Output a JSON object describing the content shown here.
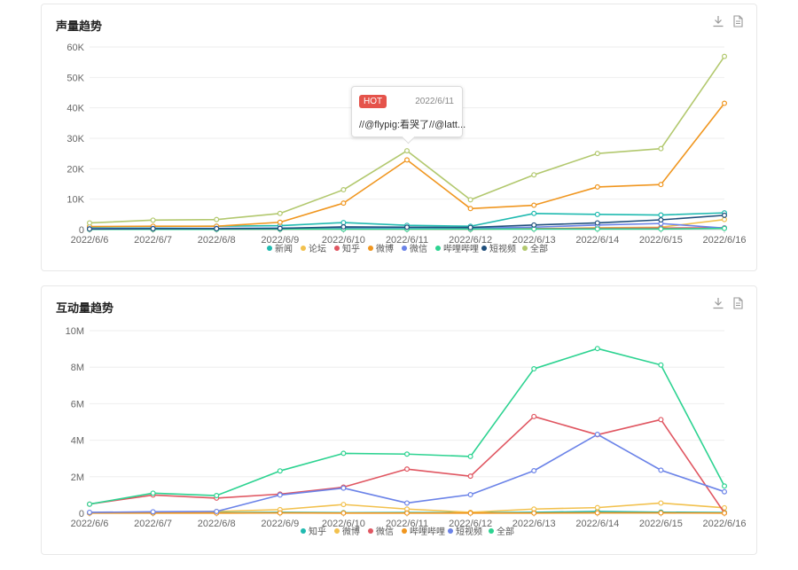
{
  "chart_data": [
    {
      "type": "line",
      "title": "声量趋势",
      "categories": [
        "2022/6/6",
        "2022/6/7",
        "2022/6/8",
        "2022/6/9",
        "2022/6/10",
        "2022/6/11",
        "2022/6/12",
        "2022/6/13",
        "2022/6/14",
        "2022/6/15",
        "2022/6/16"
      ],
      "ylim": [
        0,
        60000
      ],
      "yticks": [
        "0",
        "10K",
        "20K",
        "30K",
        "40K",
        "50K",
        "60K"
      ],
      "grid": true,
      "legend_position": "bottom",
      "series": [
        {
          "name": "新闻",
          "color": "#1fbab0",
          "values": [
            800,
            1000,
            1100,
            1300,
            2300,
            1400,
            1100,
            5300,
            5000,
            4800,
            5500
          ]
        },
        {
          "name": "论坛",
          "color": "#f2c14e",
          "values": [
            100,
            100,
            150,
            200,
            250,
            200,
            150,
            300,
            600,
            800,
            3300
          ]
        },
        {
          "name": "知乎",
          "color": "#e05661",
          "values": [
            100,
            100,
            150,
            150,
            200,
            200,
            150,
            300,
            400,
            500,
            600
          ]
        },
        {
          "name": "微博",
          "color": "#f0961f",
          "values": [
            1000,
            1100,
            1100,
            2400,
            8700,
            22900,
            6900,
            8000,
            14000,
            14800,
            41500
          ]
        },
        {
          "name": "微信",
          "color": "#6b83e8",
          "values": [
            300,
            400,
            400,
            500,
            600,
            500,
            500,
            800,
            1500,
            2000,
            500
          ]
        },
        {
          "name": "哔哩哔哩",
          "color": "#2dd391",
          "values": [
            100,
            100,
            100,
            150,
            150,
            150,
            150,
            200,
            200,
            200,
            400
          ]
        },
        {
          "name": "短视频",
          "color": "#1f4f7c",
          "values": [
            200,
            300,
            300,
            400,
            900,
            800,
            700,
            1500,
            2200,
            3200,
            4700
          ]
        },
        {
          "name": "全部",
          "color": "#b2c86e",
          "values": [
            2200,
            3100,
            3300,
            5300,
            13100,
            25900,
            9800,
            18000,
            25000,
            26600,
            56900
          ]
        }
      ],
      "tooltip": {
        "badge": "HOT",
        "date": "2022/6/11",
        "text": "//@flypig:看哭了//@latt..."
      }
    },
    {
      "type": "line",
      "title": "互动量趋势",
      "categories": [
        "2022/6/6",
        "2022/6/7",
        "2022/6/8",
        "2022/6/9",
        "2022/6/10",
        "2022/6/11",
        "2022/6/12",
        "2022/6/13",
        "2022/6/14",
        "2022/6/15",
        "2022/6/16"
      ],
      "ylim": [
        0,
        10000000
      ],
      "yticks": [
        "0",
        "2M",
        "4M",
        "6M",
        "8M",
        "10M"
      ],
      "grid": true,
      "legend_position": "bottom",
      "series": [
        {
          "name": "知乎",
          "color": "#1fbab0",
          "values": [
            20000,
            20000,
            30000,
            50000,
            30000,
            40000,
            30000,
            50000,
            100000,
            60000,
            40000
          ]
        },
        {
          "name": "微博",
          "color": "#f2c14e",
          "values": [
            20000,
            40000,
            100000,
            200000,
            480000,
            230000,
            50000,
            230000,
            310000,
            560000,
            300000
          ]
        },
        {
          "name": "微信",
          "color": "#e05661",
          "values": [
            500000,
            1000000,
            830000,
            1050000,
            1430000,
            2420000,
            2030000,
            5300000,
            4300000,
            5130000,
            20000
          ]
        },
        {
          "name": "哔哩哔哩",
          "color": "#f0961f",
          "values": [
            10000,
            10000,
            10000,
            20000,
            10000,
            10000,
            10000,
            10000,
            20000,
            20000,
            10000
          ]
        },
        {
          "name": "短视频",
          "color": "#6b83e8",
          "values": [
            50000,
            80000,
            100000,
            1000000,
            1380000,
            560000,
            1020000,
            2330000,
            4320000,
            2360000,
            1180000
          ]
        },
        {
          "name": "全部",
          "color": "#2dd391",
          "values": [
            500000,
            1100000,
            970000,
            2320000,
            3280000,
            3240000,
            3110000,
            7910000,
            9020000,
            8120000,
            1490000
          ]
        }
      ]
    }
  ]
}
